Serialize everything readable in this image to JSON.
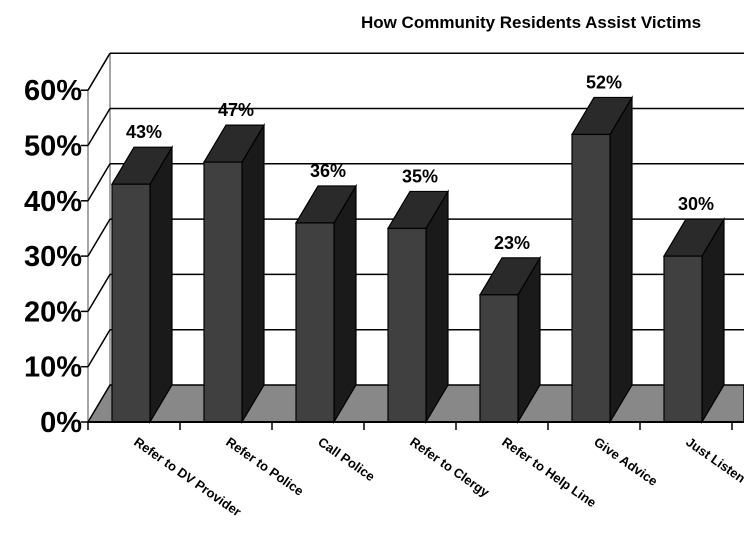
{
  "chart_data": {
    "type": "bar",
    "title": "How Community Residents Assist Victims",
    "categories": [
      "Refer to DV Provider",
      "Refer to Police",
      "Call Police",
      "Refer to Clergy",
      "Refer to Help Line",
      "Give Advice",
      "Just Listen"
    ],
    "values": [
      43,
      47,
      36,
      35,
      23,
      52,
      30
    ],
    "data_labels": [
      "43%",
      "47%",
      "36%",
      "35%",
      "23%",
      "52%",
      "30%"
    ],
    "y_tick_labels": [
      "0%",
      "10%",
      "20%",
      "30%",
      "40%",
      "50%",
      "60%"
    ],
    "ylim": [
      0,
      60
    ],
    "grid": true,
    "legend": "none",
    "style": "3d",
    "colors": {
      "bar_front": "#404040",
      "bar_top": "#2a2a2a",
      "bar_side": "#1a1a1a",
      "floor": "#888888",
      "wall_grid": "#000000"
    }
  }
}
